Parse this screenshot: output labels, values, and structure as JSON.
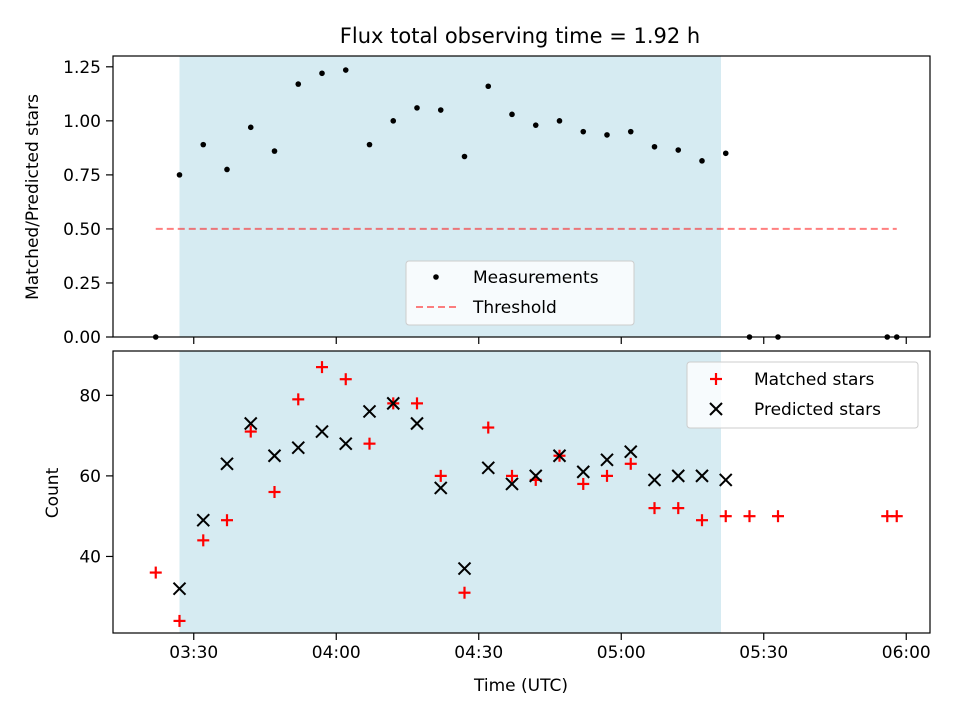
{
  "title": "Flux total observing time = 1.92 h",
  "colors": {
    "shade": "#add8e6",
    "measurement": "#000000",
    "threshold": "#ff0000",
    "matched": "#ff0000",
    "predicted": "#000000"
  },
  "chart_data": [
    {
      "type": "scatter",
      "ylabel": "Matched/Predicted stars",
      "xlabel": "",
      "xlim": [
        "03:13",
        "06:05"
      ],
      "ylim": [
        0,
        1.3
      ],
      "yticks": [
        0.0,
        0.25,
        0.5,
        0.75,
        1.0,
        1.25
      ],
      "yticklabels": [
        "0.00",
        "0.25",
        "0.50",
        "0.75",
        "1.00",
        "1.25"
      ],
      "shaded_interval": [
        "03:27",
        "05:21"
      ],
      "legend": {
        "position": "lower-center",
        "entries": [
          "Measurements",
          "Threshold"
        ]
      },
      "series": [
        {
          "name": "Measurements",
          "marker": "dot",
          "points": [
            [
              "03:22",
              0.0
            ],
            [
              "03:27",
              0.75
            ],
            [
              "03:32",
              0.89
            ],
            [
              "03:37",
              0.775
            ],
            [
              "03:42",
              0.97
            ],
            [
              "03:47",
              0.86
            ],
            [
              "03:52",
              1.17
            ],
            [
              "03:57",
              1.22
            ],
            [
              "04:02",
              1.235
            ],
            [
              "04:07",
              0.89
            ],
            [
              "04:12",
              1.0
            ],
            [
              "04:17",
              1.06
            ],
            [
              "04:22",
              1.05
            ],
            [
              "04:27",
              0.835
            ],
            [
              "04:32",
              1.16
            ],
            [
              "04:37",
              1.03
            ],
            [
              "04:42",
              0.98
            ],
            [
              "04:47",
              1.0
            ],
            [
              "04:52",
              0.95
            ],
            [
              "04:57",
              0.935
            ],
            [
              "05:02",
              0.95
            ],
            [
              "05:07",
              0.88
            ],
            [
              "05:12",
              0.865
            ],
            [
              "05:17",
              0.815
            ],
            [
              "05:22",
              0.85
            ],
            [
              "05:27",
              0.0
            ],
            [
              "05:33",
              0.0
            ],
            [
              "05:56",
              0.0
            ],
            [
              "05:58",
              0.0
            ]
          ]
        },
        {
          "name": "Threshold",
          "style": "dashed-line",
          "points": [
            [
              "03:22",
              0.5
            ],
            [
              "05:58",
              0.5
            ]
          ]
        }
      ]
    },
    {
      "type": "scatter",
      "ylabel": "Count",
      "xlabel": "Time (UTC)",
      "xlim": [
        "03:13",
        "06:05"
      ],
      "ylim": [
        21,
        91
      ],
      "yticks": [
        40,
        60,
        80
      ],
      "yticklabels": [
        "40",
        "60",
        "80"
      ],
      "xticks": [
        "03:30",
        "04:00",
        "04:30",
        "05:00",
        "05:30",
        "06:00"
      ],
      "xticklabels": [
        "03:30",
        "04:00",
        "04:30",
        "05:00",
        "05:30",
        "06:00"
      ],
      "shaded_interval": [
        "03:27",
        "05:21"
      ],
      "legend": {
        "position": "top-right",
        "entries": [
          "Matched stars",
          "Predicted stars"
        ]
      },
      "series": [
        {
          "name": "Matched stars",
          "marker": "plus",
          "points": [
            [
              "03:22",
              36
            ],
            [
              "03:27",
              24
            ],
            [
              "03:32",
              44
            ],
            [
              "03:37",
              49
            ],
            [
              "03:42",
              71
            ],
            [
              "03:47",
              56
            ],
            [
              "03:52",
              79
            ],
            [
              "03:57",
              87
            ],
            [
              "04:02",
              84
            ],
            [
              "04:07",
              68
            ],
            [
              "04:12",
              78
            ],
            [
              "04:17",
              78
            ],
            [
              "04:22",
              60
            ],
            [
              "04:27",
              31
            ],
            [
              "04:32",
              72
            ],
            [
              "04:37",
              60
            ],
            [
              "04:42",
              59
            ],
            [
              "04:47",
              65
            ],
            [
              "04:52",
              58
            ],
            [
              "04:57",
              60
            ],
            [
              "05:02",
              63
            ],
            [
              "05:07",
              52
            ],
            [
              "05:12",
              52
            ],
            [
              "05:17",
              49
            ],
            [
              "05:22",
              50
            ],
            [
              "05:27",
              50
            ],
            [
              "05:33",
              50
            ],
            [
              "05:56",
              50
            ],
            [
              "05:58",
              50
            ]
          ]
        },
        {
          "name": "Predicted stars",
          "marker": "x",
          "points": [
            [
              "03:27",
              32
            ],
            [
              "03:32",
              49
            ],
            [
              "03:37",
              63
            ],
            [
              "03:42",
              73
            ],
            [
              "03:47",
              65
            ],
            [
              "03:52",
              67
            ],
            [
              "03:57",
              71
            ],
            [
              "04:02",
              68
            ],
            [
              "04:07",
              76
            ],
            [
              "04:12",
              78
            ],
            [
              "04:17",
              73
            ],
            [
              "04:22",
              57
            ],
            [
              "04:27",
              37
            ],
            [
              "04:32",
              62
            ],
            [
              "04:37",
              58
            ],
            [
              "04:42",
              60
            ],
            [
              "04:47",
              65
            ],
            [
              "04:52",
              61
            ],
            [
              "04:57",
              64
            ],
            [
              "05:02",
              66
            ],
            [
              "05:07",
              59
            ],
            [
              "05:12",
              60
            ],
            [
              "05:17",
              60
            ],
            [
              "05:22",
              59
            ]
          ]
        }
      ]
    }
  ]
}
